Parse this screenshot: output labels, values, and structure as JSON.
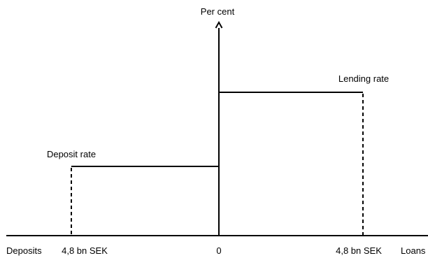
{
  "diagram": {
    "y_axis_label": "Per cent",
    "curve_labels": {
      "lending": "Lending rate",
      "deposit": "Deposit rate"
    },
    "x_axis": {
      "left_label": "Deposits",
      "left_amount": "4,8 bn SEK",
      "origin": "0",
      "right_amount": "4,8 bn SEK",
      "right_label": "Loans"
    }
  }
}
